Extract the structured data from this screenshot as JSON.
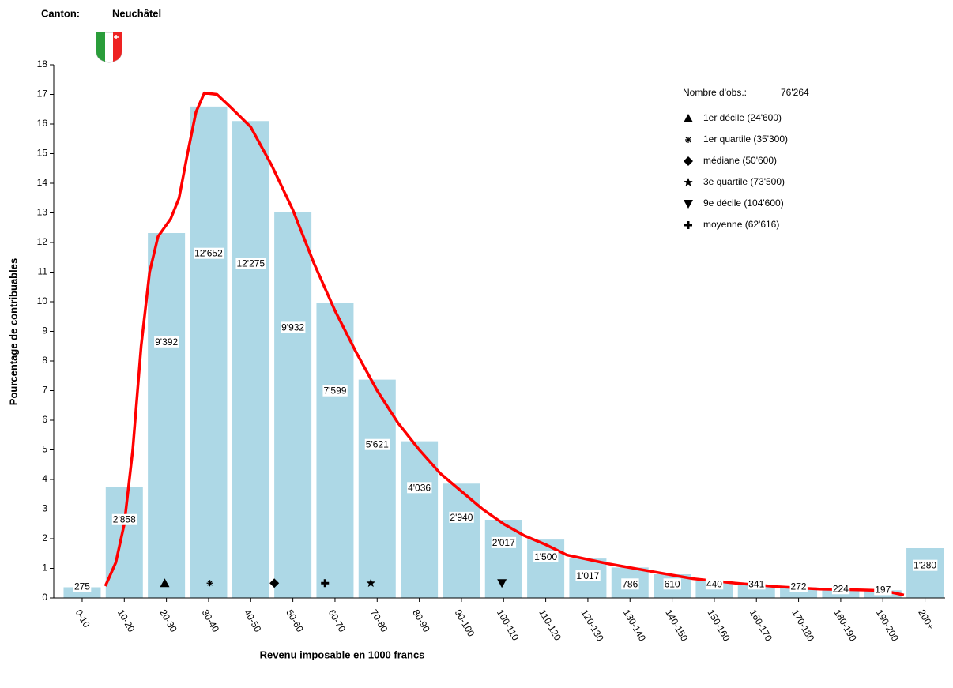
{
  "chart_data": {
    "type": "bar",
    "header": {
      "label": "Canton:",
      "value": "Neuchâtel"
    },
    "x_label": "Revenu imposable en 1000 francs",
    "y_label": "Pourcentage de contribuables",
    "categories": [
      "0-10",
      "10-20",
      "20-30",
      "30-40",
      "40-50",
      "50-60",
      "60-70",
      "70-80",
      "80-90",
      "90-100",
      "100-110",
      "110-120",
      "120-130",
      "130-140",
      "140-150",
      "150-160",
      "160-170",
      "170-180",
      "180-190",
      "190-200",
      "200+"
    ],
    "values": [
      0.36,
      3.75,
      12.32,
      16.59,
      16.1,
      13.02,
      9.96,
      7.37,
      5.29,
      3.86,
      2.64,
      1.97,
      1.33,
      1.03,
      0.8,
      0.58,
      0.45,
      0.36,
      0.29,
      0.26,
      1.68
    ],
    "count_labels": [
      "275",
      "2'858",
      "9'392",
      "12'652",
      "12'275",
      "9'932",
      "7'599",
      "5'621",
      "4'036",
      "2'940",
      "2'017",
      "1'500",
      "1'017",
      "786",
      "610",
      "440",
      "341",
      "272",
      "224",
      "197",
      "1'280"
    ],
    "color": "#add8e6",
    "ylim": [
      0,
      18
    ],
    "yticks": [
      0,
      1,
      2,
      3,
      4,
      5,
      6,
      7,
      8,
      9,
      10,
      11,
      12,
      13,
      14,
      15,
      16,
      17,
      18
    ],
    "curve": {
      "color": "#ff0000",
      "x": [
        10.5,
        13,
        15,
        17,
        19,
        21,
        23,
        26,
        28,
        30,
        32,
        34,
        37,
        40,
        45,
        50,
        55,
        60,
        65,
        70,
        75,
        80,
        85,
        90,
        95,
        100,
        105,
        110,
        115,
        120,
        130,
        140,
        150,
        160,
        170,
        180,
        190,
        195,
        200
      ],
      "y": [
        0.4,
        1.2,
        2.5,
        5,
        8.5,
        11,
        12.2,
        12.8,
        13.5,
        15,
        16.4,
        17.05,
        17,
        16.6,
        15.9,
        14.6,
        13.1,
        11.3,
        9.7,
        8.3,
        7,
        5.9,
        5,
        4.2,
        3.6,
        3,
        2.5,
        2.1,
        1.8,
        1.45,
        1.15,
        0.9,
        0.65,
        0.5,
        0.38,
        0.3,
        0.27,
        0.25,
        0.1
      ]
    },
    "obs": {
      "label": "Nombre d'obs.:",
      "value": "76'264"
    },
    "markers": [
      {
        "name": "1er décile (24'600)",
        "symbol": "triangle",
        "x": 24.6,
        "y": 0.5
      },
      {
        "name": "1er quartile (35'300)",
        "symbol": "asterisk",
        "x": 35.3,
        "y": 0.5
      },
      {
        "name": "médiane (50'600)",
        "symbol": "diamond",
        "x": 50.6,
        "y": 0.5
      },
      {
        "name": "3e quartile (73'500)",
        "symbol": "star",
        "x": 73.5,
        "y": 0.5
      },
      {
        "name": "9e décile (104'600)",
        "symbol": "triangle-down",
        "x": 104.6,
        "y": 0.5
      },
      {
        "name": "moyenne (62'616)",
        "symbol": "plus",
        "x": 62.616,
        "y": 0.5
      }
    ]
  }
}
